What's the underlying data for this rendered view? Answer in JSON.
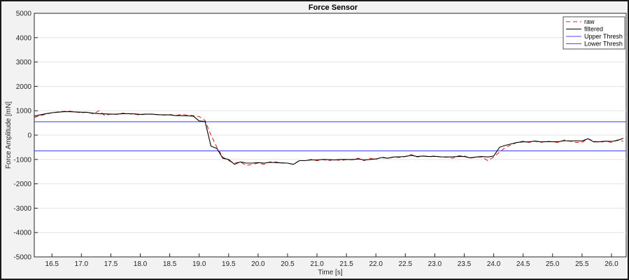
{
  "chart_data": {
    "type": "line",
    "title": "Force Sensor",
    "xlabel": "Time [s]",
    "ylabel": "Force Amplitude [mN]",
    "xlim": [
      16.2,
      26.25
    ],
    "ylim": [
      -5000,
      5000
    ],
    "xticks": [
      16.5,
      17.0,
      17.5,
      18.0,
      18.5,
      19.0,
      19.5,
      20.0,
      20.5,
      21.0,
      21.5,
      22.0,
      22.5,
      23.0,
      23.5,
      24.0,
      24.5,
      25.0,
      25.5,
      26.0
    ],
    "yticks": [
      -5000,
      -4000,
      -3000,
      -2000,
      -1000,
      0,
      1000,
      2000,
      3000,
      4000,
      5000
    ],
    "grid": "y-only",
    "legend_position": "top-right",
    "series": [
      {
        "name": "raw",
        "color": "#d62728",
        "style": "dashed",
        "x": [
          16.2,
          16.3,
          16.4,
          16.5,
          16.6,
          16.7,
          16.8,
          16.9,
          17.0,
          17.1,
          17.2,
          17.3,
          17.4,
          17.5,
          17.6,
          17.7,
          17.8,
          17.9,
          18.0,
          18.1,
          18.2,
          18.3,
          18.4,
          18.5,
          18.6,
          18.7,
          18.8,
          18.9,
          19.0,
          19.1,
          19.2,
          19.3,
          19.4,
          19.5,
          19.6,
          19.7,
          19.8,
          19.9,
          20.0,
          20.1,
          20.2,
          20.3,
          20.4,
          20.5,
          20.6,
          20.7,
          20.8,
          20.9,
          21.0,
          21.1,
          21.2,
          21.3,
          21.4,
          21.5,
          21.6,
          21.7,
          21.8,
          21.9,
          22.0,
          22.1,
          22.2,
          22.3,
          22.4,
          22.5,
          22.6,
          22.7,
          22.8,
          22.9,
          23.0,
          23.1,
          23.2,
          23.3,
          23.4,
          23.5,
          23.6,
          23.7,
          23.8,
          23.9,
          24.0,
          24.1,
          24.2,
          24.3,
          24.4,
          24.5,
          24.6,
          24.7,
          24.8,
          24.9,
          25.0,
          25.1,
          25.2,
          25.3,
          25.4,
          25.5,
          25.6,
          25.7,
          25.8,
          25.9,
          26.0,
          26.1,
          26.2
        ],
        "y": [
          720,
          800,
          860,
          920,
          950,
          970,
          980,
          950,
          910,
          950,
          870,
          1000,
          800,
          870,
          850,
          900,
          880,
          860,
          820,
          870,
          860,
          840,
          820,
          850,
          800,
          850,
          820,
          800,
          760,
          600,
          0,
          -500,
          -900,
          -1050,
          -1150,
          -1100,
          -1250,
          -1200,
          -1150,
          -1200,
          -1100,
          -1100,
          -1150,
          -1150,
          -1200,
          -1050,
          -1050,
          -1000,
          -1050,
          -1000,
          -1050,
          -1000,
          -1050,
          -1000,
          -1000,
          -950,
          -1050,
          -950,
          -1000,
          -900,
          -950,
          -900,
          -920,
          -880,
          -800,
          -900,
          -850,
          -900,
          -850,
          -900,
          -900,
          -950,
          -850,
          -850,
          -950,
          -900,
          -900,
          -1050,
          -900,
          -700,
          -500,
          -400,
          -300,
          -250,
          -300,
          -250,
          -300,
          -250,
          -280,
          -300,
          -200,
          -250,
          -300,
          -300,
          -150,
          -250,
          -300,
          -250,
          -300,
          -200,
          -250
        ]
      },
      {
        "name": "filtered",
        "color": "#000000",
        "style": "solid",
        "x": [
          16.2,
          16.3,
          16.4,
          16.5,
          16.6,
          16.7,
          16.8,
          16.9,
          17.0,
          17.1,
          17.2,
          17.3,
          17.4,
          17.5,
          17.6,
          17.7,
          17.8,
          17.9,
          18.0,
          18.1,
          18.2,
          18.3,
          18.4,
          18.5,
          18.6,
          18.7,
          18.8,
          18.9,
          19.0,
          19.1,
          19.2,
          19.3,
          19.4,
          19.5,
          19.6,
          19.7,
          19.8,
          19.9,
          20.0,
          20.1,
          20.2,
          20.3,
          20.4,
          20.5,
          20.6,
          20.7,
          20.8,
          20.9,
          21.0,
          21.1,
          21.2,
          21.3,
          21.4,
          21.5,
          21.6,
          21.7,
          21.8,
          21.9,
          22.0,
          22.1,
          22.2,
          22.3,
          22.4,
          22.5,
          22.6,
          22.7,
          22.8,
          22.9,
          23.0,
          23.1,
          23.2,
          23.3,
          23.4,
          23.5,
          23.6,
          23.7,
          23.8,
          23.9,
          24.0,
          24.1,
          24.2,
          24.3,
          24.4,
          24.5,
          24.6,
          24.7,
          24.8,
          24.9,
          25.0,
          25.1,
          25.2,
          25.3,
          25.4,
          25.5,
          25.6,
          25.7,
          25.8,
          25.9,
          26.0,
          26.1,
          26.2
        ],
        "y": [
          780,
          830,
          880,
          920,
          940,
          960,
          960,
          950,
          940,
          930,
          900,
          880,
          870,
          860,
          860,
          880,
          880,
          870,
          850,
          860,
          860,
          840,
          830,
          830,
          800,
          800,
          790,
          780,
          580,
          560,
          -450,
          -550,
          -950,
          -1000,
          -1200,
          -1100,
          -1150,
          -1150,
          -1130,
          -1150,
          -1120,
          -1130,
          -1140,
          -1150,
          -1200,
          -1050,
          -1050,
          -1020,
          -1020,
          -1000,
          -1010,
          -1020,
          -1000,
          -1000,
          -1010,
          -980,
          -1020,
          -1000,
          -980,
          -920,
          -950,
          -900,
          -890,
          -880,
          -830,
          -880,
          -860,
          -880,
          -870,
          -890,
          -900,
          -890,
          -880,
          -880,
          -930,
          -900,
          -880,
          -900,
          -860,
          -500,
          -420,
          -360,
          -300,
          -280,
          -280,
          -240,
          -280,
          -270,
          -270,
          -270,
          -230,
          -240,
          -230,
          -240,
          -150,
          -280,
          -270,
          -250,
          -260,
          -220,
          -130
        ]
      },
      {
        "name": "Upper Thresh",
        "color": "#4c4cff",
        "style": "solid",
        "x": [
          16.2,
          26.25
        ],
        "y": [
          550,
          550
        ]
      },
      {
        "name": "Lower Thresh",
        "color": "#4c4cff",
        "style": "solid",
        "x": [
          16.2,
          26.25
        ],
        "y": [
          -650,
          -650
        ]
      }
    ]
  }
}
